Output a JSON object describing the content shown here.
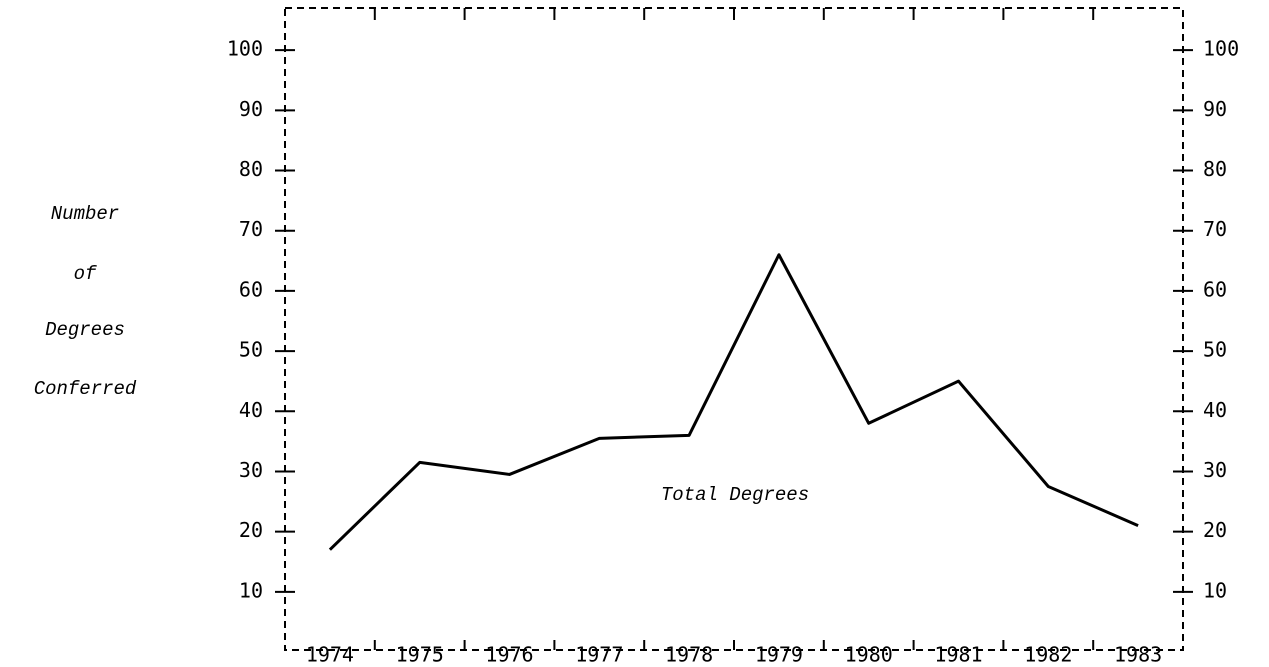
{
  "chart_data": {
    "type": "line",
    "y_label": [
      "Number",
      "of",
      "Degrees",
      "Conferred"
    ],
    "annotation": "Total Degrees",
    "categories": [
      "1974",
      "1975",
      "1976",
      "1977",
      "1978",
      "1979",
      "1980",
      "1981",
      "1982",
      "1983"
    ],
    "series": [
      {
        "name": "Total Degrees",
        "color": "#000000",
        "values": [
          17,
          31.5,
          29.5,
          35.5,
          36,
          66,
          38,
          45,
          27.5,
          21
        ]
      }
    ],
    "ylim": [
      0,
      107
    ],
    "yticks": [
      10,
      20,
      30,
      40,
      50,
      60,
      70,
      80,
      90,
      100
    ],
    "y2lim": [
      0,
      107
    ],
    "y2ticks": [
      10,
      20,
      30,
      40,
      50,
      60,
      70,
      80,
      90,
      100
    ],
    "grid": false
  }
}
